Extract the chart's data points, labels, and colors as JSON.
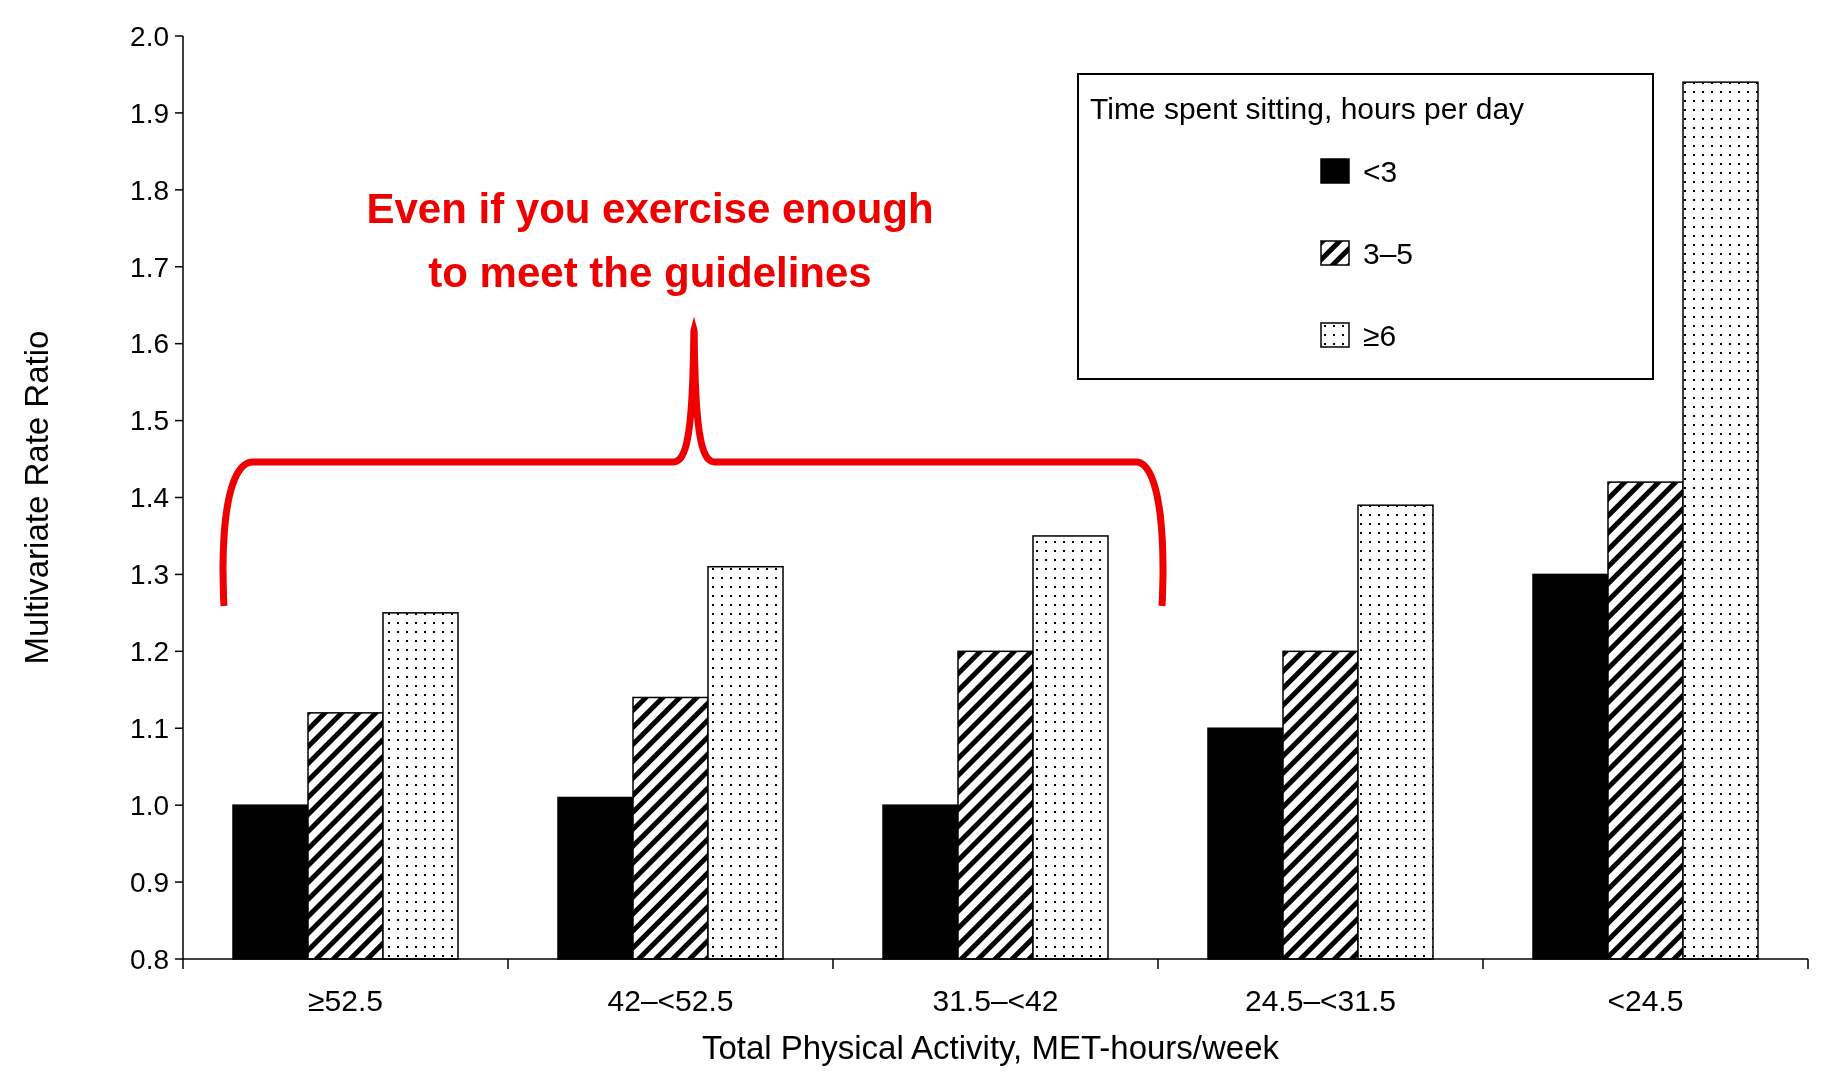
{
  "chart_data": {
    "type": "bar",
    "xlabel": "Total Physical Activity, MET-hours/week",
    "ylabel": "Multivariate Rate Ratio",
    "legend_title": "Time spent sitting, hours per day",
    "categories": [
      "≥52.5",
      "42–<52.5",
      "31.5–<42",
      "24.5–<31.5",
      "<24.5"
    ],
    "series": [
      {
        "name": "<3",
        "color": "#000000",
        "values": [
          1.0,
          1.01,
          1.0,
          1.1,
          1.3
        ]
      },
      {
        "name": "3–5",
        "color": "#000000",
        "values": [
          1.12,
          1.14,
          1.2,
          1.2,
          1.42
        ]
      },
      {
        "name": "≥6",
        "color": "#000000",
        "values": [
          1.25,
          1.31,
          1.35,
          1.39,
          1.94
        ]
      }
    ],
    "ylim": [
      0.8,
      2.0
    ],
    "yticks": [
      {
        "value": 0.8,
        "label": "0.8"
      },
      {
        "value": 0.9,
        "label": "0.9"
      },
      {
        "value": 1.0,
        "label": "1.0"
      },
      {
        "value": 1.1,
        "label": "1.1"
      },
      {
        "value": 1.2,
        "label": "1.2"
      },
      {
        "value": 1.3,
        "label": "1.3"
      },
      {
        "value": 1.4,
        "label": "1.4"
      },
      {
        "value": 1.5,
        "label": "1.5"
      },
      {
        "value": 1.6,
        "label": "1.6"
      },
      {
        "value": 1.7,
        "label": "1.7"
      },
      {
        "value": 1.8,
        "label": "1.8"
      },
      {
        "value": 1.9,
        "label": "1.9"
      },
      {
        "value": 2.0,
        "label": "2.0"
      }
    ],
    "grid": false,
    "legend": "top right",
    "annotations": [
      {
        "text": "Even if you exercise enough\nto meet the guidelines"
      }
    ]
  }
}
